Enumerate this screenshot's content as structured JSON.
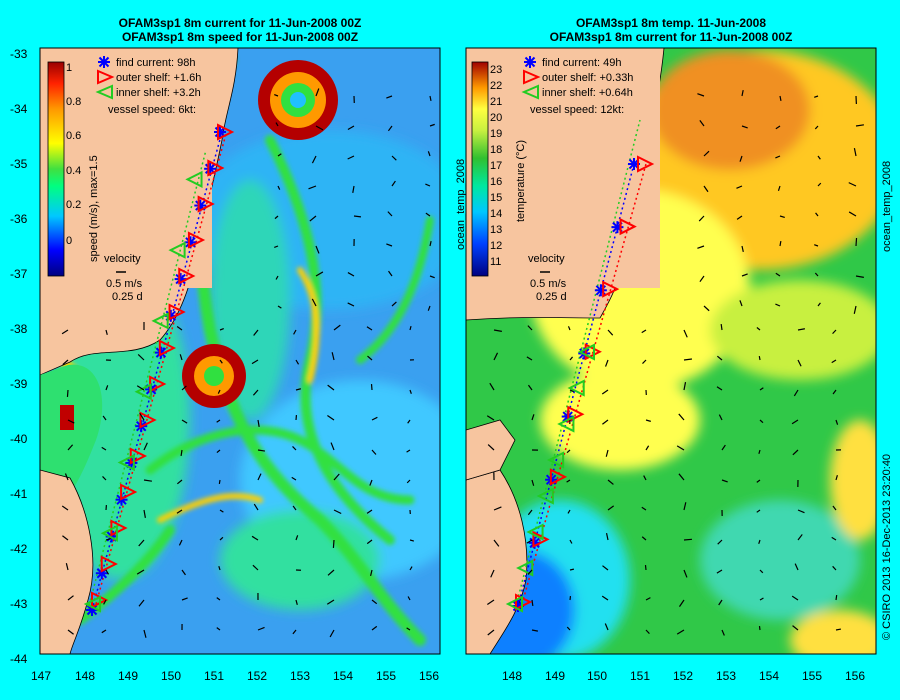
{
  "titles": {
    "left": [
      "OFAM3sp1 8m current for 11-Jun-2008 00Z",
      "OFAM3sp1 8m speed for 11-Jun-2008 00Z"
    ],
    "right": [
      "OFAM3sp1 8m temp. 11-Jun-2008",
      "OFAM3sp1 8m current for 11-Jun-2008 00Z"
    ]
  },
  "axes": {
    "lat_labels": [
      "-33",
      "-34",
      "-35",
      "-36",
      "-37",
      "-38",
      "-39",
      "-40",
      "-41",
      "-42",
      "-43",
      "-44"
    ],
    "lon_labels_left": [
      "147",
      "148",
      "149",
      "150",
      "151",
      "152",
      "153",
      "154",
      "155",
      "156"
    ],
    "lon_labels_right": [
      "148",
      "149",
      "150",
      "151",
      "152",
      "153",
      "154",
      "155",
      "156"
    ]
  },
  "left_panel": {
    "colorbar_label": "speed (m/s), max=1.5",
    "colorbar_ticks": [
      "1",
      "0.8",
      "0.6",
      "0.4",
      "0.2",
      "0"
    ],
    "legend": {
      "find": "find current: 98h",
      "outer": "outer shelf: +1.6h",
      "inner": "inner shelf: +3.2h",
      "speed": "vessel speed: 6kt:"
    },
    "velocity": {
      "title": "velocity",
      "speed": "0.5 m/s",
      "time": "0.25 d"
    }
  },
  "right_panel": {
    "colorbar_label": "temperature (°C)",
    "colorbar_ticks": [
      "23",
      "22",
      "21",
      "20",
      "19",
      "18",
      "17",
      "16",
      "15",
      "14",
      "13",
      "12",
      "11"
    ],
    "side_label": "ocean_temp_2008",
    "legend": {
      "find": "find current: 49h",
      "outer": "outer shelf: +0.33h",
      "inner": "inner shelf: +0.64h",
      "speed": "vessel speed: 12kt:"
    },
    "velocity": {
      "title": "velocity",
      "speed": "0.5 m/s",
      "time": "0.25 d"
    }
  },
  "side_labels": {
    "right_edge_top": "ocean_temp_2008",
    "right_edge_bottom": "© CSIRO 2013  16-Dec-2013 23:20:40"
  },
  "colors": {
    "background": "#00ffff",
    "land": "#f7c59f",
    "find_marker": "#0000ff",
    "outer_marker": "#ff0000",
    "inner_marker": "#22cc22"
  }
}
